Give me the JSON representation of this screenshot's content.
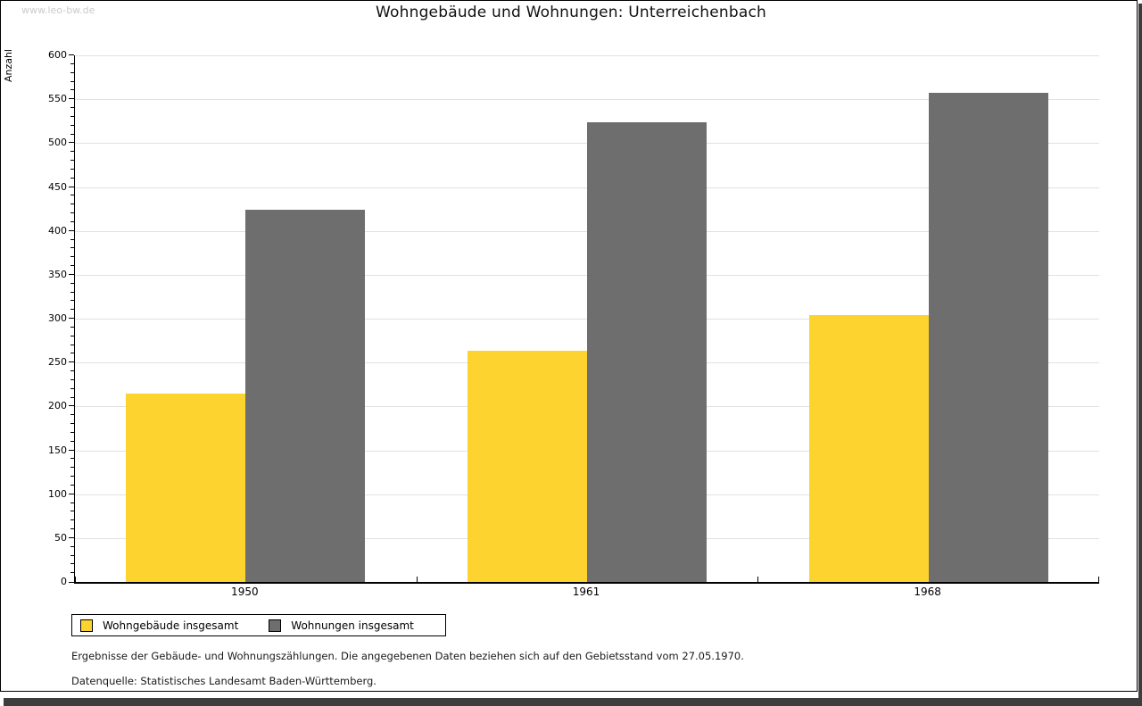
{
  "watermark": "www.leo-bw.de",
  "title": "Wohngebäude und Wohnungen: Unterreichenbach",
  "chart_data": {
    "type": "bar",
    "title": "Wohngebäude und Wohnungen: Unterreichenbach",
    "xlabel": "",
    "ylabel": "Anzahl",
    "ylim": [
      0,
      600
    ],
    "ytick_step": 50,
    "ytick_minor_step": 10,
    "grid": true,
    "legend_position": "bottom",
    "categories": [
      "1950",
      "1961",
      "1968"
    ],
    "series": [
      {
        "name": "Wohngebäude insgesamt",
        "color": "#fcd32f",
        "values": [
          215,
          263,
          304
        ]
      },
      {
        "name": "Wohnungen insgesamt",
        "color": "#6e6e6e",
        "values": [
          424,
          524,
          557
        ]
      }
    ]
  },
  "footnotes": {
    "line1": "Ergebnisse der Gebäude- und Wohnungszählungen. Die angegebenen Daten beziehen sich auf den Gebietsstand vom 27.05.1970.",
    "line2": "Datenquelle: Statistisches Landesamt Baden-Württemberg."
  },
  "colors": {
    "gridline": "#e1e1e1",
    "axis": "#000000",
    "watermark": "#cbcbcb",
    "window_shadow": "#3d3d3d"
  }
}
